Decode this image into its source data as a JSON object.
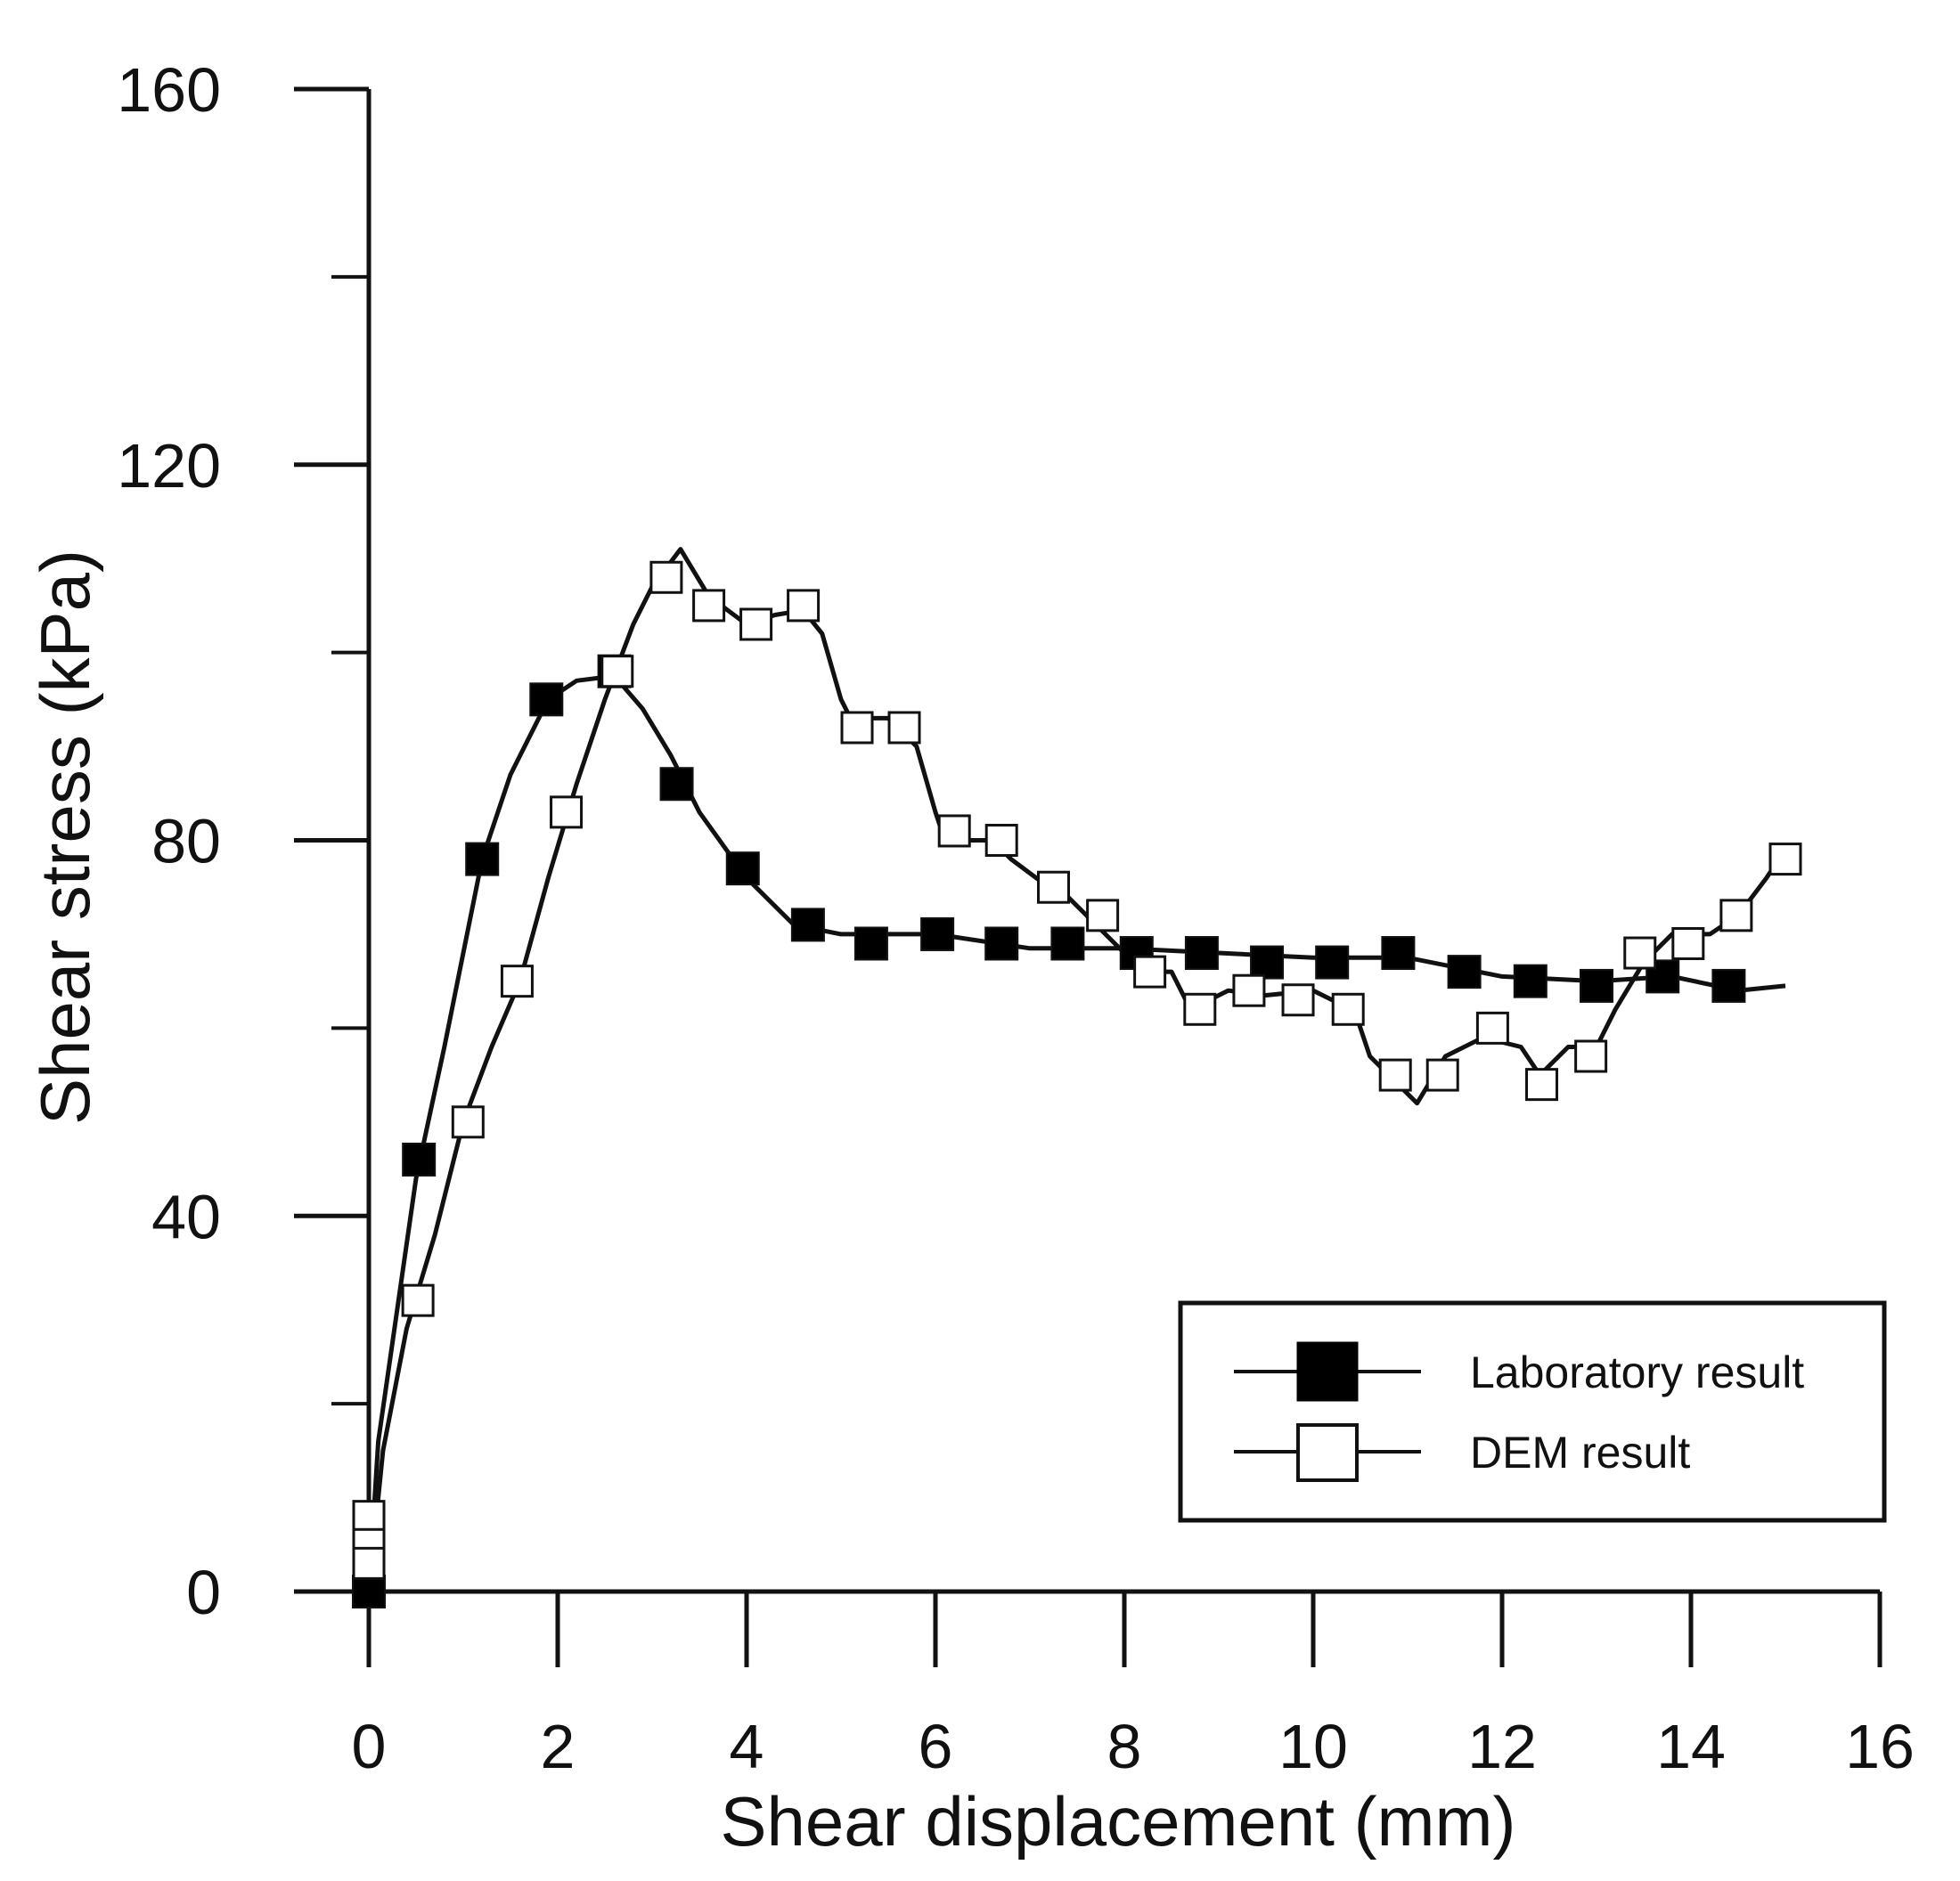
{
  "chart_data": {
    "type": "line",
    "title": "",
    "xlabel": "Shear displacement (mm)",
    "ylabel": "Shear stress (kPa)",
    "xlim": [
      0,
      16
    ],
    "ylim": [
      0,
      160
    ],
    "x_major_ticks": [
      0,
      2,
      4,
      6,
      8,
      10,
      12,
      14,
      16
    ],
    "x_tick_labels": [
      "0",
      "2",
      "4",
      "6",
      "8",
      "10",
      "12",
      "14",
      "16"
    ],
    "y_major_ticks": [
      0,
      40,
      80,
      120,
      160
    ],
    "y_tick_labels": [
      "0",
      "40",
      "80",
      "120",
      "160"
    ],
    "y_minor_ticks": [
      20,
      60,
      100,
      140
    ],
    "grid": false,
    "legend_position": "bottom-right",
    "colors": {
      "line": "#111111",
      "axis": "#111111",
      "marker_fill": "#000000",
      "open_marker_fill": "#ffffff"
    },
    "series": [
      {
        "name": "Laboratory result",
        "marker": "filled-square",
        "line": [
          [
            0,
            0
          ],
          [
            0.1,
            16
          ],
          [
            0.3,
            30
          ],
          [
            0.5,
            44
          ],
          [
            0.8,
            58
          ],
          [
            1.2,
            78
          ],
          [
            1.5,
            87
          ],
          [
            1.9,
            95
          ],
          [
            2.2,
            97
          ],
          [
            2.6,
            97.5
          ],
          [
            2.9,
            94
          ],
          [
            3.2,
            89
          ],
          [
            3.5,
            83
          ],
          [
            4.0,
            76
          ],
          [
            4.5,
            71
          ],
          [
            5.0,
            70
          ],
          [
            6.0,
            70
          ],
          [
            7.0,
            68.5
          ],
          [
            8.0,
            68.5
          ],
          [
            9.0,
            68
          ],
          [
            10.0,
            67.5
          ],
          [
            11.0,
            67.5
          ],
          [
            12.0,
            65.5
          ],
          [
            13.0,
            65
          ],
          [
            13.8,
            65.5
          ],
          [
            14.5,
            64
          ],
          [
            15.0,
            64.5
          ]
        ],
        "markers": [
          [
            0,
            0
          ],
          [
            0.53,
            46
          ],
          [
            1.2,
            78
          ],
          [
            1.88,
            95
          ],
          [
            2.6,
            98
          ],
          [
            3.26,
            86
          ],
          [
            3.96,
            77
          ],
          [
            4.65,
            71
          ],
          [
            5.32,
            69
          ],
          [
            6.02,
            70
          ],
          [
            6.7,
            69
          ],
          [
            7.4,
            69
          ],
          [
            8.13,
            68
          ],
          [
            8.82,
            68
          ],
          [
            9.51,
            67
          ],
          [
            10.2,
            67
          ],
          [
            10.9,
            68
          ],
          [
            11.6,
            66
          ],
          [
            12.3,
            65
          ],
          [
            13.0,
            64.5
          ],
          [
            13.7,
            65.5
          ],
          [
            14.4,
            64.5
          ]
        ]
      },
      {
        "name": "DEM result",
        "marker": "open-square",
        "line": [
          [
            0,
            0
          ],
          [
            0.15,
            15
          ],
          [
            0.4,
            28
          ],
          [
            0.7,
            38
          ],
          [
            1.0,
            50
          ],
          [
            1.3,
            58
          ],
          [
            1.6,
            65
          ],
          [
            1.9,
            76
          ],
          [
            2.2,
            86
          ],
          [
            2.5,
            95
          ],
          [
            2.8,
            103
          ],
          [
            3.0,
            107
          ],
          [
            3.3,
            111
          ],
          [
            3.6,
            106
          ],
          [
            4.0,
            103
          ],
          [
            4.3,
            104
          ],
          [
            4.6,
            104.5
          ],
          [
            4.8,
            102
          ],
          [
            5.0,
            95
          ],
          [
            5.1,
            93
          ],
          [
            5.5,
            93
          ],
          [
            5.8,
            90
          ],
          [
            6.0,
            83
          ],
          [
            6.1,
            80
          ],
          [
            6.6,
            80
          ],
          [
            6.8,
            78
          ],
          [
            7.2,
            75
          ],
          [
            7.4,
            74
          ],
          [
            7.7,
            71
          ],
          [
            8.0,
            68
          ],
          [
            8.2,
            66
          ],
          [
            8.5,
            66
          ],
          [
            8.7,
            62
          ],
          [
            9.1,
            64
          ],
          [
            9.5,
            63.5
          ],
          [
            10.0,
            64
          ],
          [
            10.2,
            63
          ],
          [
            10.4,
            63
          ],
          [
            10.6,
            57
          ],
          [
            10.8,
            55
          ],
          [
            11.1,
            52
          ],
          [
            11.4,
            57
          ],
          [
            11.8,
            59
          ],
          [
            12.2,
            58
          ],
          [
            12.4,
            55
          ],
          [
            12.7,
            58
          ],
          [
            13.0,
            58
          ],
          [
            13.2,
            62
          ],
          [
            13.5,
            67
          ],
          [
            13.8,
            70
          ],
          [
            14.2,
            70
          ],
          [
            14.5,
            72
          ],
          [
            14.8,
            76
          ],
          [
            15.0,
            79
          ]
        ],
        "markers": [
          [
            0,
            8
          ],
          [
            0,
            5
          ],
          [
            0,
            3
          ],
          [
            0.52,
            31
          ],
          [
            1.05,
            50
          ],
          [
            1.57,
            65
          ],
          [
            2.09,
            83
          ],
          [
            2.63,
            98
          ],
          [
            3.15,
            108
          ],
          [
            3.6,
            105
          ],
          [
            4.1,
            103
          ],
          [
            4.6,
            105
          ],
          [
            5.17,
            92
          ],
          [
            5.67,
            92
          ],
          [
            6.2,
            81
          ],
          [
            6.7,
            80
          ],
          [
            7.25,
            75
          ],
          [
            7.77,
            72
          ],
          [
            8.27,
            66
          ],
          [
            8.8,
            62
          ],
          [
            9.32,
            64
          ],
          [
            9.84,
            63
          ],
          [
            10.37,
            62
          ],
          [
            10.87,
            55
          ],
          [
            11.37,
            55
          ],
          [
            11.9,
            60
          ],
          [
            12.42,
            54
          ],
          [
            12.94,
            57
          ],
          [
            13.46,
            68
          ],
          [
            13.97,
            69
          ],
          [
            14.48,
            72
          ],
          [
            15.0,
            78
          ]
        ]
      }
    ]
  }
}
